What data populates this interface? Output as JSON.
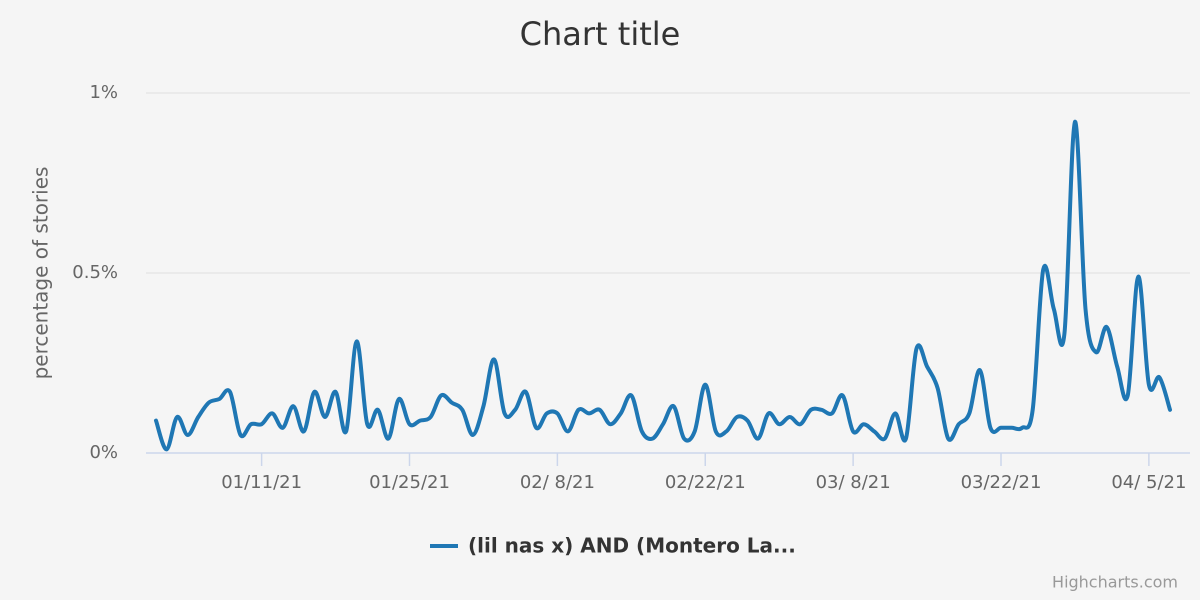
{
  "chart_data": {
    "type": "line",
    "title": "Chart title",
    "y_axis_label": "percentage of stories",
    "credits": "Highcharts.com",
    "x": [
      "2021-01-01",
      "2021-01-02",
      "2021-01-03",
      "2021-01-04",
      "2021-01-05",
      "2021-01-06",
      "2021-01-07",
      "2021-01-08",
      "2021-01-09",
      "2021-01-10",
      "2021-01-11",
      "2021-01-12",
      "2021-01-13",
      "2021-01-14",
      "2021-01-15",
      "2021-01-16",
      "2021-01-17",
      "2021-01-18",
      "2021-01-19",
      "2021-01-20",
      "2021-01-21",
      "2021-01-22",
      "2021-01-23",
      "2021-01-24",
      "2021-01-25",
      "2021-01-26",
      "2021-01-27",
      "2021-01-28",
      "2021-01-29",
      "2021-01-30",
      "2021-01-31",
      "2021-02-01",
      "2021-02-02",
      "2021-02-03",
      "2021-02-04",
      "2021-02-05",
      "2021-02-06",
      "2021-02-07",
      "2021-02-08",
      "2021-02-09",
      "2021-02-10",
      "2021-02-11",
      "2021-02-12",
      "2021-02-13",
      "2021-02-14",
      "2021-02-15",
      "2021-02-16",
      "2021-02-17",
      "2021-02-18",
      "2021-02-19",
      "2021-02-20",
      "2021-02-21",
      "2021-02-22",
      "2021-02-23",
      "2021-02-24",
      "2021-02-25",
      "2021-02-26",
      "2021-02-27",
      "2021-02-28",
      "2021-03-01",
      "2021-03-02",
      "2021-03-03",
      "2021-03-04",
      "2021-03-05",
      "2021-03-06",
      "2021-03-07",
      "2021-03-08",
      "2021-03-09",
      "2021-03-10",
      "2021-03-11",
      "2021-03-12",
      "2021-03-13",
      "2021-03-14",
      "2021-03-15",
      "2021-03-16",
      "2021-03-17",
      "2021-03-18",
      "2021-03-19",
      "2021-03-20",
      "2021-03-21",
      "2021-03-22",
      "2021-03-23",
      "2021-03-24",
      "2021-03-25",
      "2021-03-26",
      "2021-03-27",
      "2021-03-28",
      "2021-03-29",
      "2021-03-30",
      "2021-03-31",
      "2021-04-01",
      "2021-04-02",
      "2021-04-03",
      "2021-04-04",
      "2021-04-05",
      "2021-04-06",
      "2021-04-07"
    ],
    "series": [
      {
        "name": "(lil nas x) AND (Montero La...",
        "color": "#1f77b4",
        "values": [
          0.09,
          0.01,
          0.1,
          0.05,
          0.1,
          0.14,
          0.15,
          0.17,
          0.05,
          0.08,
          0.08,
          0.11,
          0.07,
          0.13,
          0.06,
          0.17,
          0.1,
          0.17,
          0.06,
          0.31,
          0.08,
          0.12,
          0.04,
          0.15,
          0.08,
          0.09,
          0.1,
          0.16,
          0.14,
          0.12,
          0.05,
          0.13,
          0.26,
          0.11,
          0.12,
          0.17,
          0.07,
          0.11,
          0.11,
          0.06,
          0.12,
          0.11,
          0.12,
          0.08,
          0.11,
          0.16,
          0.06,
          0.04,
          0.08,
          0.13,
          0.04,
          0.06,
          0.19,
          0.06,
          0.06,
          0.1,
          0.09,
          0.04,
          0.11,
          0.08,
          0.1,
          0.08,
          0.12,
          0.12,
          0.11,
          0.16,
          0.06,
          0.08,
          0.06,
          0.04,
          0.11,
          0.04,
          0.29,
          0.24,
          0.18,
          0.04,
          0.08,
          0.11,
          0.23,
          0.07,
          0.07,
          0.07,
          0.07,
          0.12,
          0.51,
          0.4,
          0.33,
          0.92,
          0.4,
          0.28,
          0.35,
          0.24,
          0.16,
          0.49,
          0.19,
          0.21,
          0.12
        ]
      }
    ],
    "xlim": [
      "2021-01-01",
      "2021-04-07"
    ],
    "xticks": [
      {
        "value": "2021-01-11",
        "label": "01/11/21"
      },
      {
        "value": "2021-01-25",
        "label": "01/25/21"
      },
      {
        "value": "2021-02-08",
        "label": "02/ 8/21"
      },
      {
        "value": "2021-02-22",
        "label": "02/22/21"
      },
      {
        "value": "2021-03-08",
        "label": "03/ 8/21"
      },
      {
        "value": "2021-03-22",
        "label": "03/22/21"
      },
      {
        "value": "2021-04-05",
        "label": "04/ 5/21"
      }
    ],
    "ylim": [
      0,
      1
    ],
    "yticks": [
      {
        "value": 0,
        "label": "0%"
      },
      {
        "value": 0.5,
        "label": "0.5%"
      },
      {
        "value": 1,
        "label": "1%"
      }
    ],
    "grid": true,
    "legend": "bottom"
  }
}
